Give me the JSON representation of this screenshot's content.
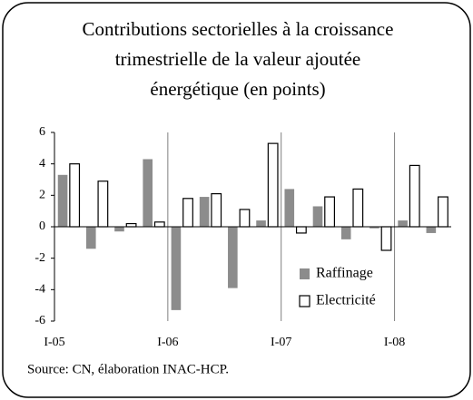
{
  "chart_data": {
    "type": "bar",
    "title": [
      "Contributions sectorielles à la croissance",
      "trimestrielle de la valeur ajoutée",
      "énergétique (en points)"
    ],
    "categories": [
      "I-05",
      null,
      null,
      null,
      "I-06",
      null,
      null,
      null,
      "I-07",
      null,
      null,
      null,
      "I-08",
      null
    ],
    "series": [
      {
        "name": "Raffinage",
        "color": "#8c8c8c",
        "values": [
          3.3,
          -1.4,
          -0.3,
          4.3,
          -5.3,
          1.9,
          -3.9,
          0.4,
          2.4,
          1.3,
          -0.8,
          -0.1,
          0.4,
          -0.4
        ]
      },
      {
        "name": "Electricité",
        "color": "#ffffff",
        "values": [
          4.0,
          2.9,
          0.2,
          0.3,
          1.8,
          2.1,
          1.1,
          5.3,
          -0.4,
          1.9,
          2.4,
          -1.5,
          3.9,
          1.9
        ]
      }
    ],
    "ylim": [
      -6,
      6
    ],
    "yticks": [
      -6,
      -4,
      -2,
      0,
      2,
      4,
      6
    ],
    "legend": "bottom-right",
    "source": "Source: CN, élaboration INAC-HCP."
  }
}
